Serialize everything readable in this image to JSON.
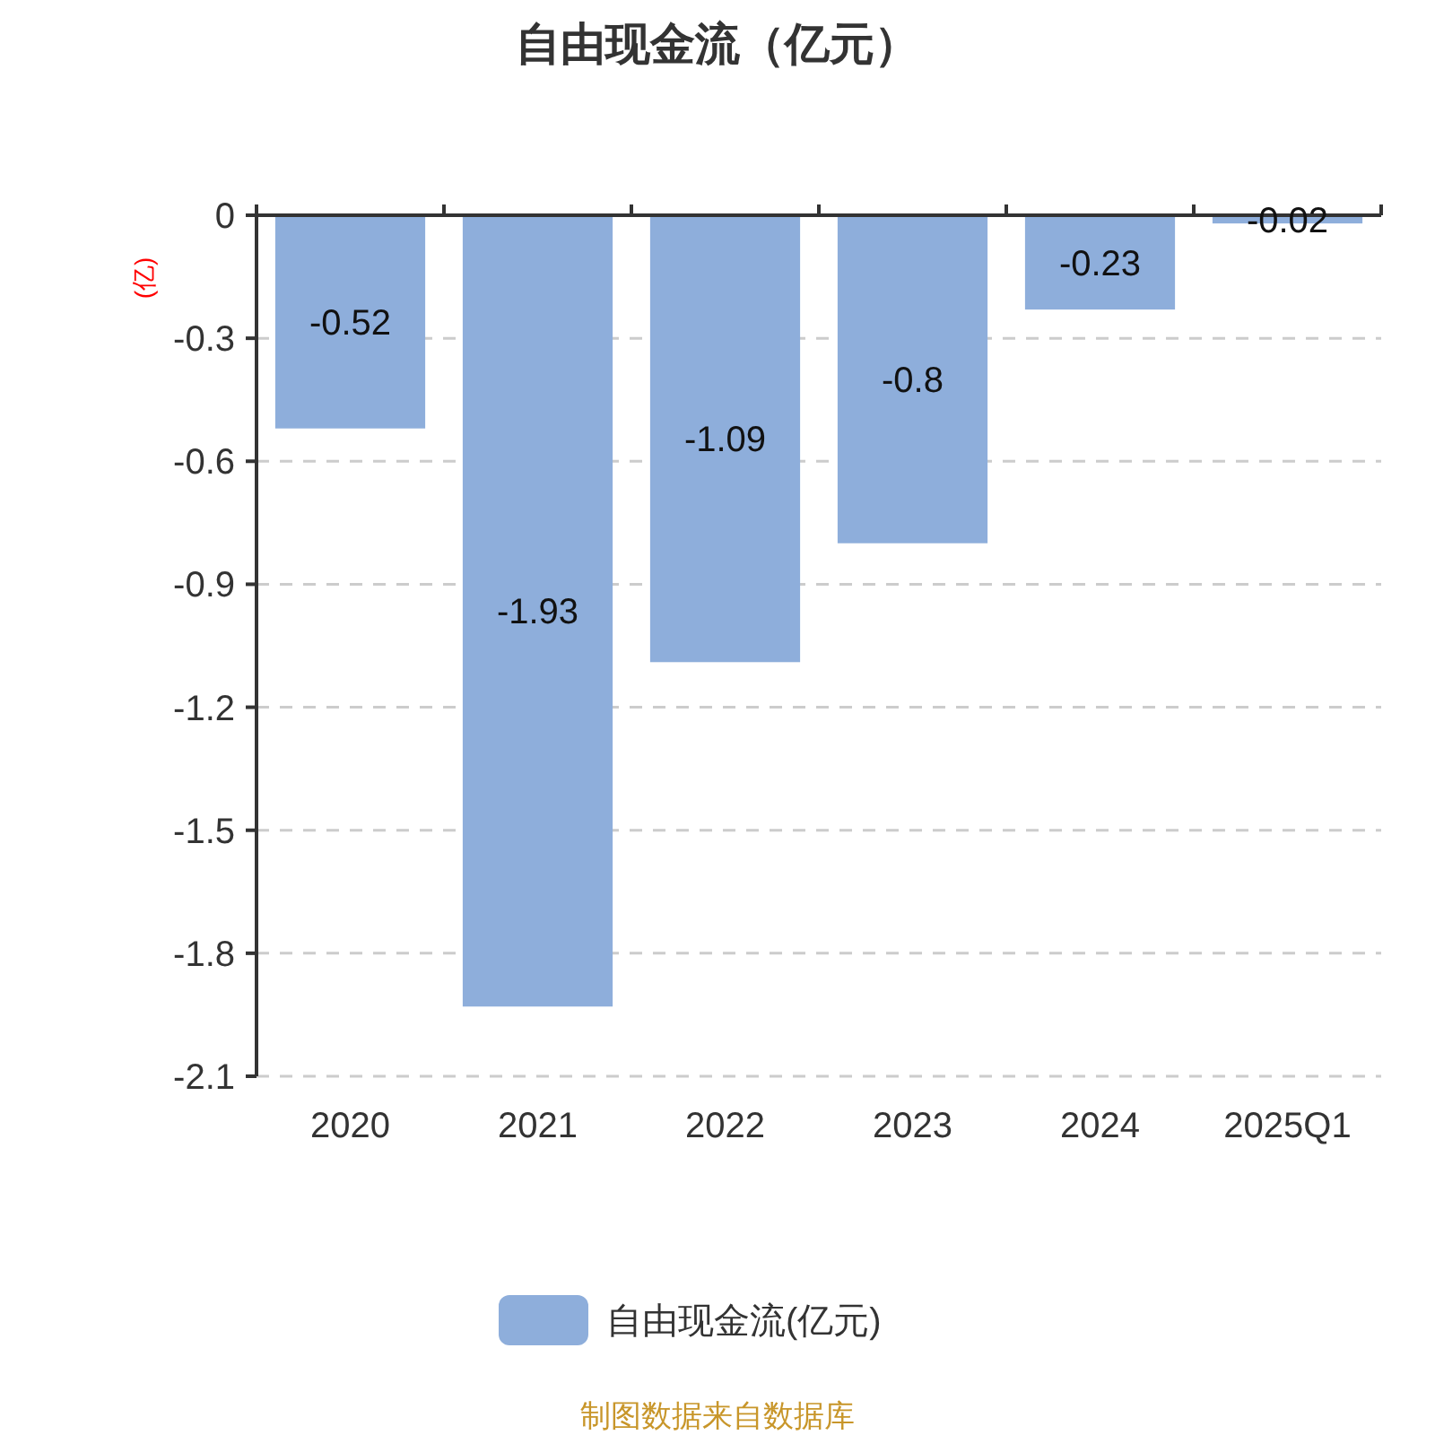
{
  "chart_data": {
    "type": "bar",
    "title": "自由现金流（亿元）",
    "ylabel": "(亿)",
    "categories": [
      "2020",
      "2021",
      "2022",
      "2023",
      "2024",
      "2025Q1"
    ],
    "series": [
      {
        "name": "自由现金流(亿元)",
        "color": "#8eaedb",
        "values": [
          -0.52,
          -1.93,
          -1.09,
          -0.8,
          -0.23,
          -0.02
        ]
      }
    ],
    "ylim": [
      -2.1,
      0
    ],
    "yticks": [
      -2.1,
      -1.8,
      -1.5,
      -1.2,
      -0.9,
      -0.6,
      -0.3,
      0
    ],
    "grid": "y",
    "legend": "bottom",
    "data_labels": true,
    "annotations": [
      "制图数据来自数据库"
    ]
  }
}
